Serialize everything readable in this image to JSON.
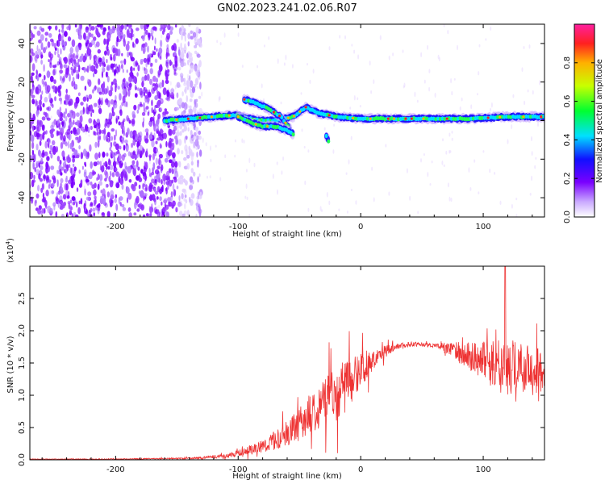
{
  "page": {
    "title": "GN02.2023.241.02.06.R07"
  },
  "chart_data": [
    {
      "type": "heatmap",
      "id": "spectrogram",
      "title": "GN02.2023.241.02.06.R07",
      "xlabel": "Height of straight line (km)",
      "ylabel": "Frequency (Hz)",
      "xlim": [
        -270,
        150
      ],
      "ylim": [
        -50,
        50
      ],
      "xticks": [
        -200,
        -100,
        0,
        100
      ],
      "xtick_labels": [
        "-200",
        "-100",
        "0",
        "100"
      ],
      "yticks": [
        -40,
        -20,
        0,
        20,
        40
      ],
      "ytick_labels": [
        "-40",
        "-20",
        "0",
        "20",
        "40"
      ],
      "noise_region_x": [
        -270,
        -140
      ],
      "signal_ridges": [
        {
          "name": "",
          "points": [
            [
              -160,
              0
            ],
            [
              -140,
              1
            ],
            [
              -120,
              2
            ],
            [
              -100,
              3
            ],
            [
              -90,
              1
            ],
            [
              -80,
              0
            ],
            [
              -70,
              0
            ],
            [
              -55,
              2
            ],
            [
              -45,
              7
            ],
            [
              -35,
              4
            ],
            [
              -20,
              2
            ],
            [
              0,
              1
            ],
            [
              30,
              1
            ],
            [
              60,
              1
            ],
            [
              90,
              1
            ],
            [
              120,
              2
            ],
            [
              150,
              2
            ]
          ]
        },
        {
          "name": "",
          "points": [
            [
              -95,
              11
            ],
            [
              -85,
              9
            ],
            [
              -75,
              6
            ],
            [
              -65,
              2
            ],
            [
              -57,
              -5
            ]
          ]
        },
        {
          "name": "",
          "points": [
            [
              -100,
              2
            ],
            [
              -90,
              -1
            ],
            [
              -80,
              -3
            ],
            [
              -70,
              -3
            ],
            [
              -60,
              -5
            ],
            [
              -55,
              -7
            ]
          ]
        },
        {
          "name": "",
          "points": [
            [
              -28,
              -8
            ],
            [
              -26,
              -11
            ]
          ]
        }
      ],
      "colorbar": {
        "label": "Normalized spectral amplitude",
        "range": [
          0,
          1
        ],
        "ticks": [
          0.0,
          0.2,
          0.4,
          0.6,
          0.8
        ],
        "tick_labels": [
          "0.0",
          "0.2",
          "0.4",
          "0.6",
          "0.8"
        ]
      }
    },
    {
      "type": "line",
      "id": "snr",
      "xlabel": "Height of straight line (km)",
      "ylabel": "SNR (10 * v/v)",
      "yscale_label": "(x10",
      "yscale_exp": "4",
      "yscale_close": ")",
      "xlim": [
        -270,
        150
      ],
      "ylim": [
        0,
        3.0
      ],
      "xticks": [
        -200,
        -100,
        0,
        100
      ],
      "xtick_labels": [
        "-200",
        "-100",
        "0",
        "100"
      ],
      "yticks": [
        0.0,
        0.5,
        1.0,
        1.5,
        2.0,
        2.5
      ],
      "ytick_labels": [
        "0.0",
        "0.5",
        "1.0",
        "1.5",
        "2.0",
        "2.5"
      ],
      "color": "#ee3333",
      "envelope": [
        [
          -270,
          0.01
        ],
        [
          -200,
          0.01
        ],
        [
          -150,
          0.02
        ],
        [
          -130,
          0.03
        ],
        [
          -110,
          0.06
        ],
        [
          -100,
          0.1
        ],
        [
          -90,
          0.15
        ],
        [
          -75,
          0.25
        ],
        [
          -60,
          0.4
        ],
        [
          -50,
          0.55
        ],
        [
          -40,
          0.75
        ],
        [
          -30,
          0.9
        ],
        [
          -20,
          1.05
        ],
        [
          -10,
          1.2
        ],
        [
          0,
          1.4
        ],
        [
          10,
          1.55
        ],
        [
          20,
          1.68
        ],
        [
          30,
          1.76
        ],
        [
          40,
          1.79
        ],
        [
          50,
          1.79
        ],
        [
          60,
          1.77
        ],
        [
          70,
          1.73
        ],
        [
          80,
          1.67
        ],
        [
          90,
          1.6
        ],
        [
          100,
          1.55
        ],
        [
          110,
          1.5
        ],
        [
          120,
          1.45
        ],
        [
          130,
          1.42
        ],
        [
          140,
          1.38
        ],
        [
          150,
          1.35
        ]
      ],
      "noise_amplitude": [
        [
          -270,
          0.005
        ],
        [
          -150,
          0.01
        ],
        [
          -110,
          0.03
        ],
        [
          -80,
          0.1
        ],
        [
          -50,
          0.25
        ],
        [
          -20,
          0.45
        ],
        [
          -5,
          0.35
        ],
        [
          10,
          0.15
        ],
        [
          30,
          0.04
        ],
        [
          60,
          0.03
        ],
        [
          80,
          0.15
        ],
        [
          100,
          0.3
        ],
        [
          120,
          0.45
        ],
        [
          150,
          0.35
        ]
      ]
    }
  ]
}
